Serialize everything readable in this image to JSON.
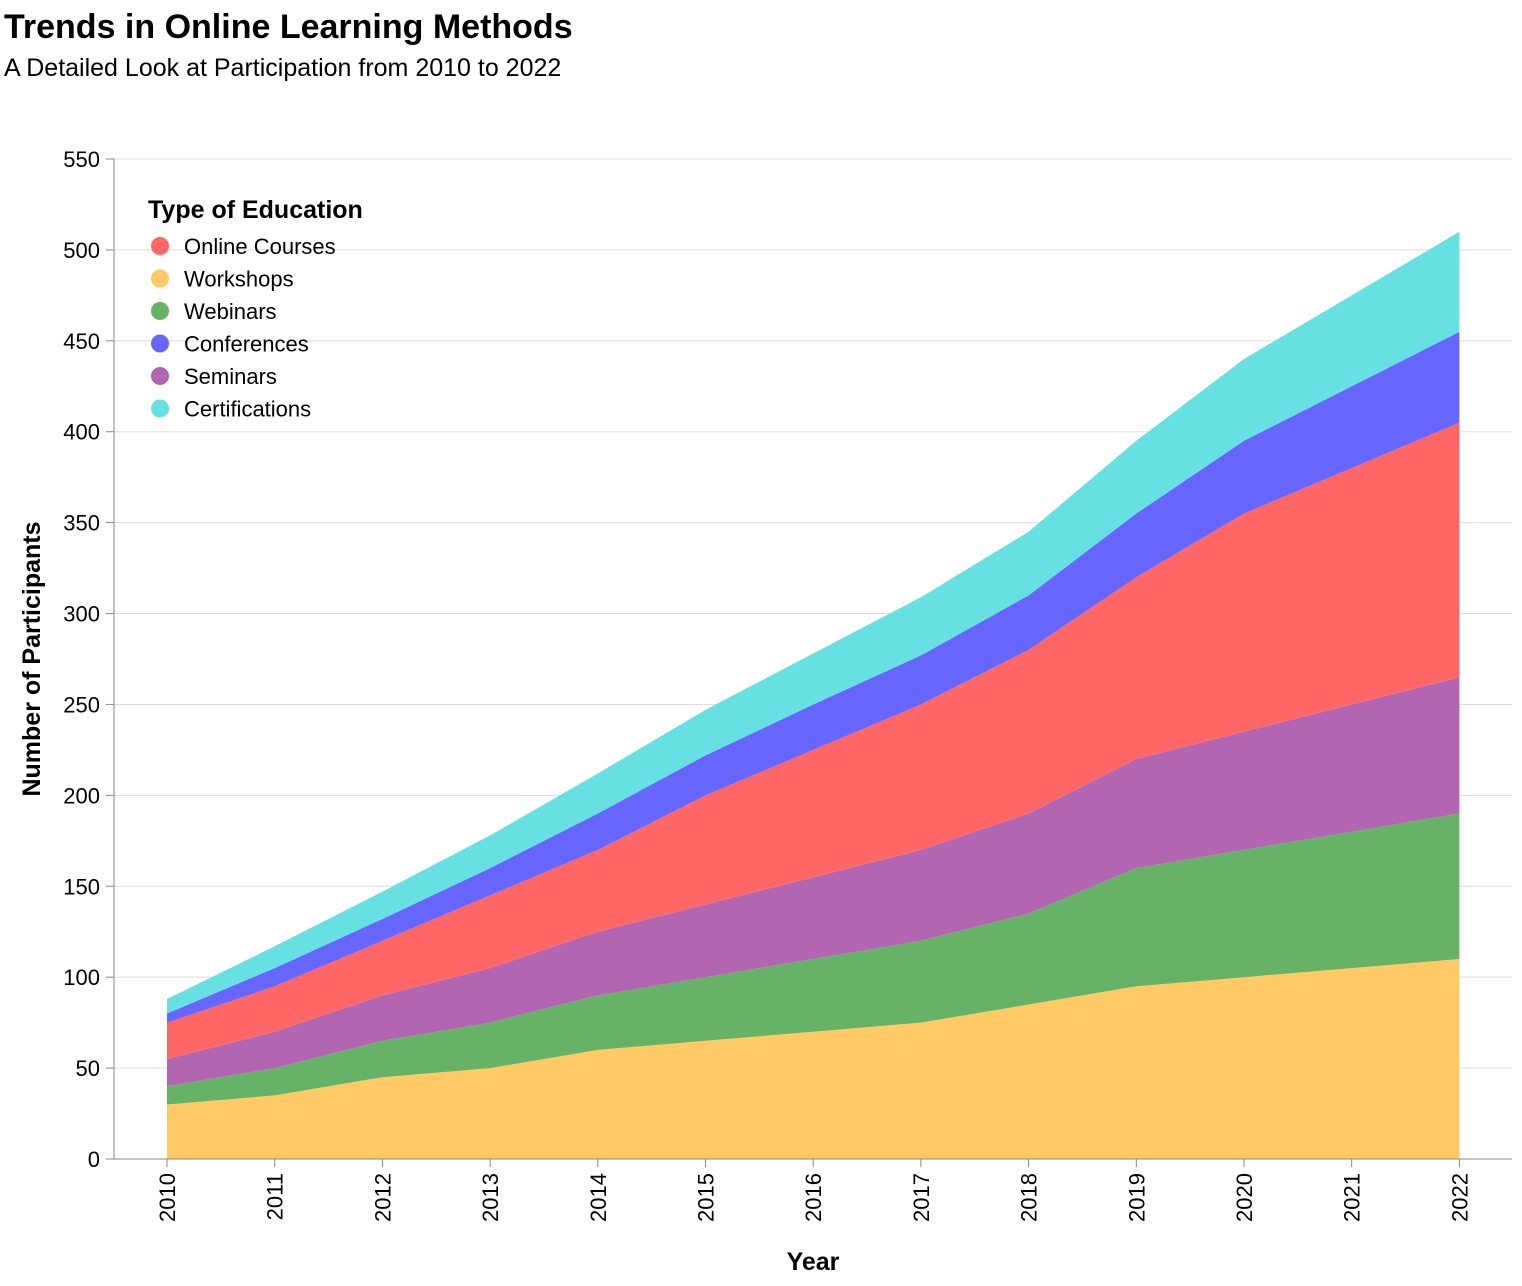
{
  "chart_data": {
    "type": "area",
    "stacked": true,
    "title": "Trends in Online Learning Methods",
    "subtitle": "A Detailed Look at Participation from 2010 to 2022",
    "xlabel": "Year",
    "ylabel": "Number of Participants",
    "ylim": [
      0,
      550
    ],
    "yticks": [
      0,
      50,
      100,
      150,
      200,
      250,
      300,
      350,
      400,
      450,
      500,
      550
    ],
    "grid": true,
    "legend": {
      "title": "Type of Education",
      "placement": "top-left",
      "order": [
        "Online Courses",
        "Workshops",
        "Webinars",
        "Conferences",
        "Seminars",
        "Certifications"
      ]
    },
    "x": [
      "2010",
      "2011",
      "2012",
      "2013",
      "2014",
      "2015",
      "2016",
      "2017",
      "2018",
      "2019",
      "2020",
      "2021",
      "2022"
    ],
    "stack_order": [
      "Workshops",
      "Webinars",
      "Seminars",
      "Online Courses",
      "Conferences",
      "Certifications"
    ],
    "series": [
      {
        "name": "Online Courses",
        "color": "#ff6666",
        "values": [
          20,
          25,
          30,
          40,
          45,
          60,
          70,
          80,
          90,
          100,
          120,
          130,
          140
        ]
      },
      {
        "name": "Workshops",
        "color": "#ffc966",
        "values": [
          30,
          35,
          45,
          50,
          60,
          65,
          70,
          75,
          85,
          95,
          100,
          105,
          110
        ]
      },
      {
        "name": "Webinars",
        "color": "#66b266",
        "values": [
          10,
          15,
          20,
          25,
          30,
          35,
          40,
          45,
          50,
          65,
          70,
          75,
          80
        ]
      },
      {
        "name": "Conferences",
        "color": "#6666ff",
        "values": [
          5,
          10,
          12,
          15,
          20,
          22,
          25,
          27,
          30,
          35,
          40,
          45,
          50
        ]
      },
      {
        "name": "Seminars",
        "color": "#b266b2",
        "values": [
          15,
          20,
          25,
          30,
          35,
          40,
          45,
          50,
          55,
          60,
          65,
          70,
          75
        ]
      },
      {
        "name": "Certifications",
        "color": "#66e0e0",
        "values": [
          8,
          12,
          15,
          18,
          22,
          25,
          28,
          32,
          35,
          40,
          45,
          50,
          55
        ]
      }
    ]
  }
}
